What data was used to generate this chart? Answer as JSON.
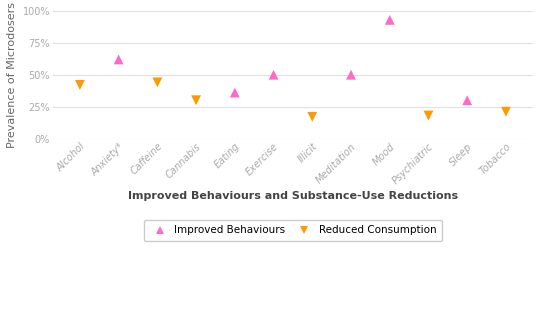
{
  "categories": [
    "Alcohol",
    "Anxiety*",
    "Caffeine",
    "Cannabis",
    "Eating",
    "Exercise",
    "Illicit",
    "Meditation",
    "Mood",
    "Psychiatric",
    "Sleep",
    "Tobacco"
  ],
  "improved_behaviours": [
    null,
    62,
    null,
    null,
    36,
    50,
    null,
    50,
    93,
    null,
    30,
    null
  ],
  "reduced_consumption": [
    42,
    null,
    44,
    30,
    null,
    null,
    17,
    null,
    null,
    18,
    null,
    21
  ],
  "improved_color": "#ff69c8",
  "reduced_color": "#ff9900",
  "xlabel": "Improved Behaviours and Substance-Use Reductions",
  "ylabel": "Prevalence of Microdosers",
  "ylim": [
    0,
    100
  ],
  "yticks": [
    0,
    25,
    50,
    75,
    100
  ],
  "ytick_labels": [
    "0%",
    "25%",
    "50%",
    "75%",
    "100%"
  ],
  "legend_improved": "Improved Behaviours",
  "legend_reduced": "Reduced Consumption",
  "background_color": "#ffffff",
  "grid_color": "#e0e0e0",
  "marker_size": 50,
  "xlabel_fontsize": 8,
  "ylabel_fontsize": 8,
  "tick_fontsize": 7,
  "legend_fontsize": 7.5,
  "figwidth": 5.4,
  "figheight": 3.18,
  "dpi": 100
}
